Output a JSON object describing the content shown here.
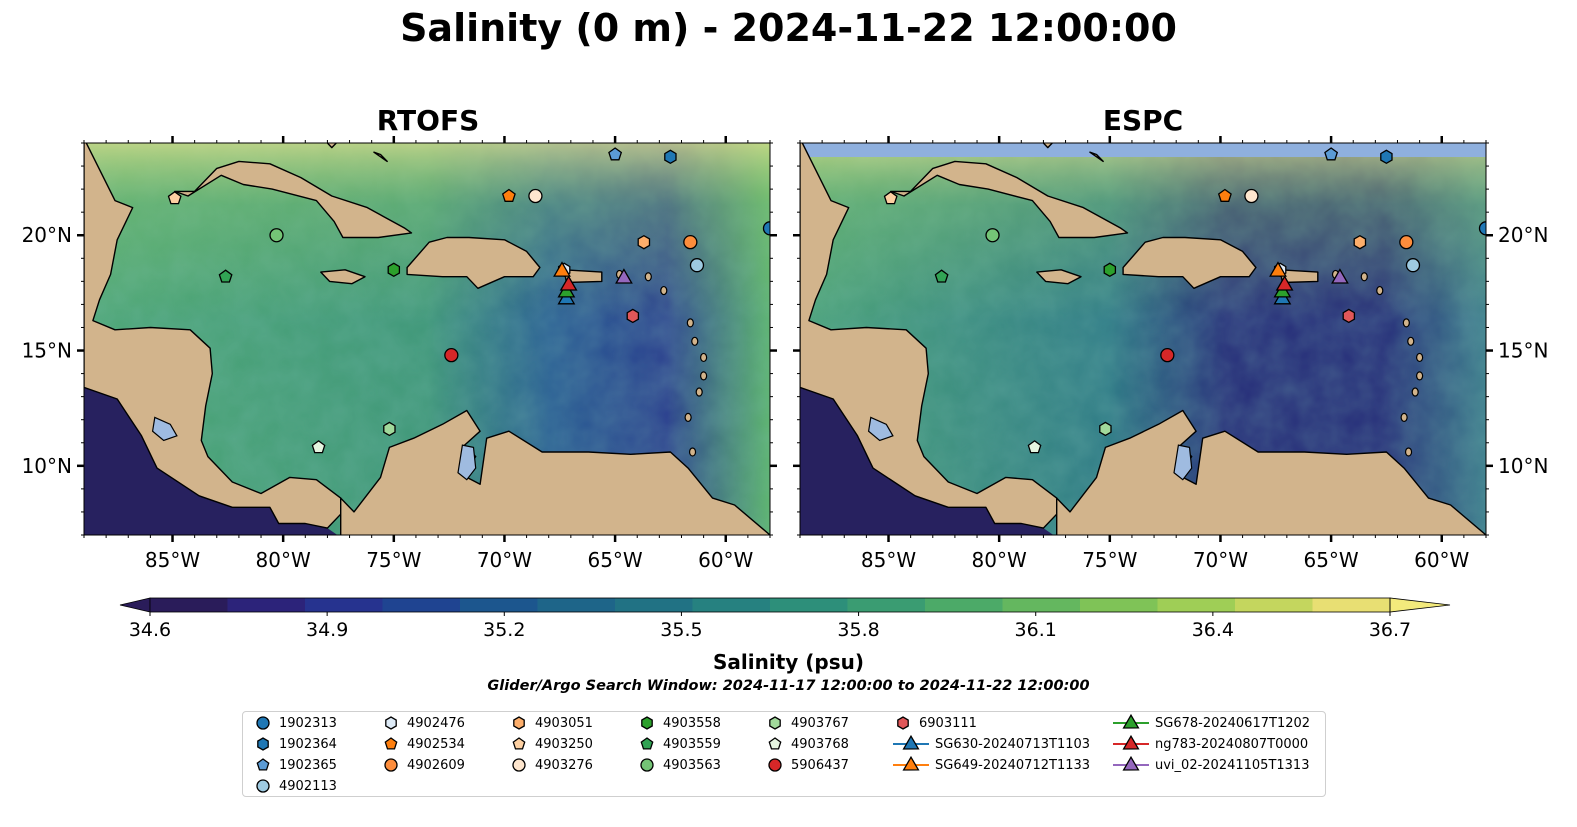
{
  "title": "Salinity (0 m) - 2024-11-22 12:00:00",
  "panels": [
    {
      "title": "RTOFS"
    },
    {
      "title": "ESPC"
    }
  ],
  "map": {
    "lon_range": [
      -89,
      -58
    ],
    "lat_range": [
      7,
      24
    ],
    "lon_ticks": [
      {
        "value": -85,
        "label": "85°W"
      },
      {
        "value": -80,
        "label": "80°W"
      },
      {
        "value": -75,
        "label": "75°W"
      },
      {
        "value": -70,
        "label": "70°W"
      },
      {
        "value": -65,
        "label": "65°W"
      },
      {
        "value": -60,
        "label": "60°W"
      }
    ],
    "lat_ticks": [
      {
        "value": 10,
        "label": "10°N"
      },
      {
        "value": 15,
        "label": "15°N"
      },
      {
        "value": 20,
        "label": "20°N"
      }
    ],
    "colors": {
      "land": "#d2b48c",
      "lake": "#9fbbe0",
      "ocean_fill": "#5ea874",
      "masked_band": "#8fb0de"
    }
  },
  "colorbar": {
    "min": 34.6,
    "max": 36.7,
    "ticks": [
      "34.6",
      "34.9",
      "35.2",
      "35.5",
      "35.8",
      "36.1",
      "36.4",
      "36.7"
    ],
    "label": "Salinity (psu)",
    "colormap": "haline",
    "extend": "both"
  },
  "search_window": "Glider/Argo Search Window: 2024-11-17 12:00:00 to 2024-11-22 12:00:00",
  "observations": [
    {
      "id": "1902313",
      "marker": "circle",
      "color": "#1f77b4",
      "lon": -58,
      "lat": 20.3
    },
    {
      "id": "1902364",
      "marker": "hexagon",
      "color": "#1f77b4",
      "lon": -62.5,
      "lat": 23.4
    },
    {
      "id": "1902365",
      "marker": "pentagon",
      "color": "#5b9bd5",
      "lon": -65,
      "lat": 23.5
    },
    {
      "id": "4902113",
      "marker": "circle",
      "color": "#9ecae1",
      "lon": -61.3,
      "lat": 18.7
    },
    {
      "id": "4902476",
      "marker": "hexagon",
      "color": "#deebf7",
      "lon": -67.3,
      "lat": 18.5
    },
    {
      "id": "4902534",
      "marker": "pentagon",
      "color": "#ff7f0e",
      "lon": -69.8,
      "lat": 21.7
    },
    {
      "id": "4902609",
      "marker": "circle",
      "color": "#fd8d3c",
      "lon": -61.6,
      "lat": 19.7
    },
    {
      "id": "4903051",
      "marker": "hexagon",
      "color": "#fdae6b",
      "lon": -63.7,
      "lat": 19.7
    },
    {
      "id": "4903250",
      "marker": "pentagon",
      "color": "#fdd0a2",
      "lon": -84.9,
      "lat": 21.6
    },
    {
      "id": "4903276",
      "marker": "circle",
      "color": "#fee6ce",
      "lon": -68.6,
      "lat": 21.7
    },
    {
      "id": "4903558",
      "marker": "hexagon",
      "color": "#2ca02c",
      "lon": -75,
      "lat": 18.5
    },
    {
      "id": "4903559",
      "marker": "pentagon",
      "color": "#31a354",
      "lon": -82.6,
      "lat": 18.2
    },
    {
      "id": "4903563",
      "marker": "circle",
      "color": "#74c476",
      "lon": -80.3,
      "lat": 20
    },
    {
      "id": "4903767",
      "marker": "hexagon",
      "color": "#a1d99b",
      "lon": -75.2,
      "lat": 11.6
    },
    {
      "id": "4903768",
      "marker": "pentagon",
      "color": "#e5f5e0",
      "lon": -78.4,
      "lat": 10.8
    },
    {
      "id": "5906437",
      "marker": "circle",
      "color": "#d62728",
      "lon": -72.4,
      "lat": 14.8
    },
    {
      "id": "6903111",
      "marker": "hexagon",
      "color": "#e15759",
      "lon": -64.2,
      "lat": 16.5
    },
    {
      "id": "SG630-20240713T1103",
      "marker": "triangle",
      "color": "#1f77b4",
      "lon": -67.2,
      "lat": 17.3
    },
    {
      "id": "SG649-20240712T1133",
      "marker": "triangle",
      "color": "#ff7f0e",
      "lon": -67.4,
      "lat": 18.5
    },
    {
      "id": "SG678-20240617T1202",
      "marker": "triangle",
      "color": "#2ca02c",
      "lon": -67.2,
      "lat": 17.6
    },
    {
      "id": "ng783-20240807T0000",
      "marker": "triangle",
      "color": "#d62728",
      "lon": -67.1,
      "lat": 17.9
    },
    {
      "id": "uvi_02-20241105T1313",
      "marker": "triangle",
      "color": "#9467bd",
      "lon": -64.6,
      "lat": 18.2
    }
  ]
}
